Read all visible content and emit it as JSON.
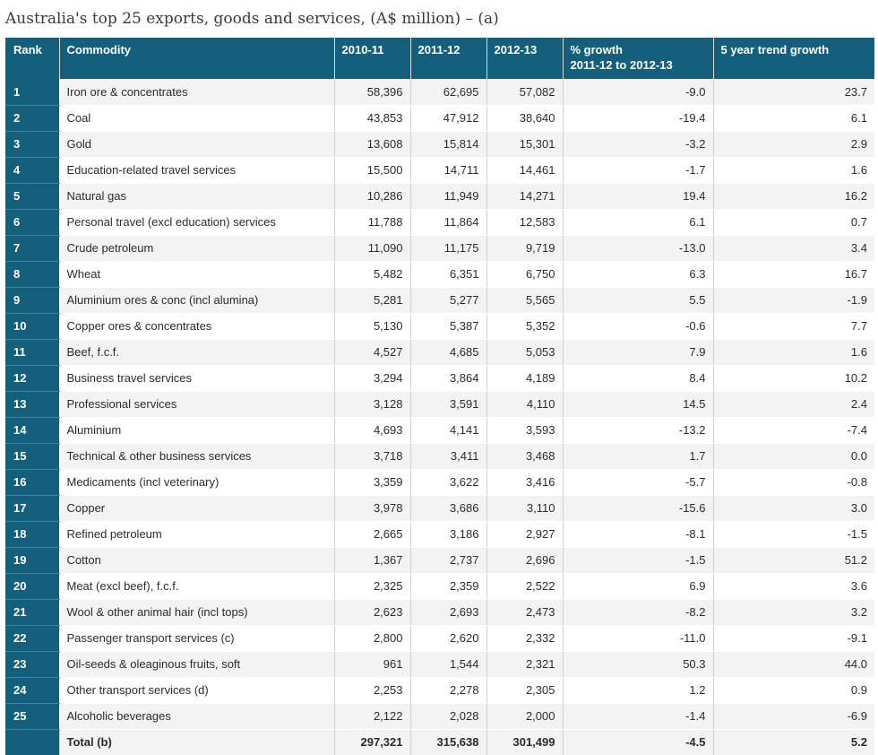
{
  "title": "Australia's top 25 exports, goods and services, (A$ million) – (a)",
  "colors": {
    "header_bg": "#14607c",
    "header_text": "#ffffff",
    "row_alt": "#f3f3f3"
  },
  "table": {
    "headers": {
      "rank": "Rank",
      "commodity": "Commodity",
      "y1": "2010-11",
      "y2": "2011-12",
      "y3": "2012-13",
      "growth_line1": "% growth",
      "growth_line2": "2011-12 to 2012-13",
      "trend": "5 year trend growth"
    },
    "rows": [
      {
        "rank": "1",
        "commodity": "Iron ore & concentrates",
        "y1": "58,396",
        "y2": "62,695",
        "y3": "57,082",
        "growth": "-9.0",
        "trend": "23.7"
      },
      {
        "rank": "2",
        "commodity": "Coal",
        "y1": "43,853",
        "y2": "47,912",
        "y3": "38,640",
        "growth": "-19.4",
        "trend": "6.1"
      },
      {
        "rank": "3",
        "commodity": "Gold",
        "y1": "13,608",
        "y2": "15,814",
        "y3": "15,301",
        "growth": "-3.2",
        "trend": "2.9"
      },
      {
        "rank": "4",
        "commodity": "Education-related travel services",
        "y1": "15,500",
        "y2": "14,711",
        "y3": "14,461",
        "growth": "-1.7",
        "trend": "1.6"
      },
      {
        "rank": "5",
        "commodity": "Natural gas",
        "y1": "10,286",
        "y2": "11,949",
        "y3": "14,271",
        "growth": "19.4",
        "trend": "16.2"
      },
      {
        "rank": "6",
        "commodity": "Personal travel (excl education) services",
        "y1": "11,788",
        "y2": "11,864",
        "y3": "12,583",
        "growth": "6.1",
        "trend": "0.7"
      },
      {
        "rank": "7",
        "commodity": "Crude petroleum",
        "y1": "11,090",
        "y2": "11,175",
        "y3": "9,719",
        "growth": "-13.0",
        "trend": "3.4"
      },
      {
        "rank": "8",
        "commodity": "Wheat",
        "y1": "5,482",
        "y2": "6,351",
        "y3": "6,750",
        "growth": "6.3",
        "trend": "16.7"
      },
      {
        "rank": "9",
        "commodity": "Aluminium ores & conc (incl alumina)",
        "y1": "5,281",
        "y2": "5,277",
        "y3": "5,565",
        "growth": "5.5",
        "trend": "-1.9"
      },
      {
        "rank": "10",
        "commodity": "Copper ores & concentrates",
        "y1": "5,130",
        "y2": "5,387",
        "y3": "5,352",
        "growth": "-0.6",
        "trend": "7.7"
      },
      {
        "rank": "11",
        "commodity": "Beef, f.c.f.",
        "y1": "4,527",
        "y2": "4,685",
        "y3": "5,053",
        "growth": "7.9",
        "trend": "1.6"
      },
      {
        "rank": "12",
        "commodity": "Business travel services",
        "y1": "3,294",
        "y2": "3,864",
        "y3": "4,189",
        "growth": "8.4",
        "trend": "10.2"
      },
      {
        "rank": "13",
        "commodity": "Professional services",
        "y1": "3,128",
        "y2": "3,591",
        "y3": "4,110",
        "growth": "14.5",
        "trend": "2.4"
      },
      {
        "rank": "14",
        "commodity": "Aluminium",
        "y1": "4,693",
        "y2": "4,141",
        "y3": "3,593",
        "growth": "-13.2",
        "trend": "-7.4"
      },
      {
        "rank": "15",
        "commodity": "Technical & other business services",
        "y1": "3,718",
        "y2": "3,411",
        "y3": "3,468",
        "growth": "1.7",
        "trend": "0.0"
      },
      {
        "rank": "16",
        "commodity": "Medicaments (incl veterinary)",
        "y1": "3,359",
        "y2": "3,622",
        "y3": "3,416",
        "growth": "-5.7",
        "trend": "-0.8"
      },
      {
        "rank": "17",
        "commodity": "Copper",
        "y1": "3,978",
        "y2": "3,686",
        "y3": "3,110",
        "growth": "-15.6",
        "trend": "3.0"
      },
      {
        "rank": "18",
        "commodity": "Refined petroleum",
        "y1": "2,665",
        "y2": "3,186",
        "y3": "2,927",
        "growth": "-8.1",
        "trend": "-1.5"
      },
      {
        "rank": "19",
        "commodity": "Cotton",
        "y1": "1,367",
        "y2": "2,737",
        "y3": "2,696",
        "growth": "-1.5",
        "trend": "51.2"
      },
      {
        "rank": "20",
        "commodity": "Meat (excl beef), f.c.f.",
        "y1": "2,325",
        "y2": "2,359",
        "y3": "2,522",
        "growth": "6.9",
        "trend": "3.6"
      },
      {
        "rank": "21",
        "commodity": "Wool & other animal hair (incl tops)",
        "y1": "2,623",
        "y2": "2,693",
        "y3": "2,473",
        "growth": "-8.2",
        "trend": "3.2"
      },
      {
        "rank": "22",
        "commodity": "Passenger transport services (c)",
        "y1": "2,800",
        "y2": "2,620",
        "y3": "2,332",
        "growth": "-11.0",
        "trend": "-9.1"
      },
      {
        "rank": "23",
        "commodity": "Oil-seeds & oleaginous fruits, soft",
        "y1": "961",
        "y2": "1,544",
        "y3": "2,321",
        "growth": "50.3",
        "trend": "44.0"
      },
      {
        "rank": "24",
        "commodity": "Other transport services (d)",
        "y1": "2,253",
        "y2": "2,278",
        "y3": "2,305",
        "growth": "1.2",
        "trend": "0.9"
      },
      {
        "rank": "25",
        "commodity": "Alcoholic beverages",
        "y1": "2,122",
        "y2": "2,028",
        "y3": "2,000",
        "growth": "-1.4",
        "trend": "-6.9"
      }
    ],
    "total": {
      "label": "Total (b)",
      "y1": "297,321",
      "y2": "315,638",
      "y3": "301,499",
      "growth": "-4.5",
      "trend": "5.2"
    }
  }
}
